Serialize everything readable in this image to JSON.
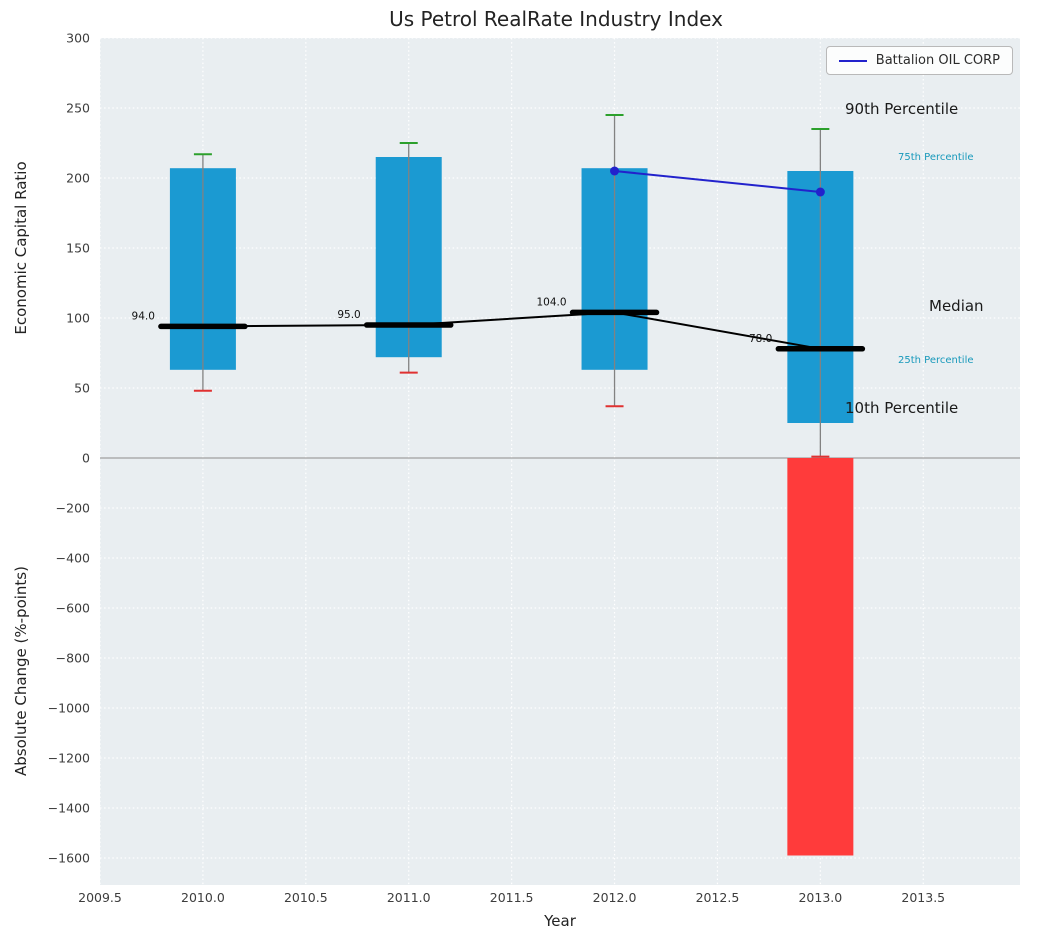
{
  "title": "Us Petrol RealRate Industry Index",
  "legend": {
    "series_label": "Battalion OIL CORP"
  },
  "axes": {
    "xlabel": "Year",
    "top_ylabel": "Economic Capital Ratio",
    "bottom_ylabel": "Absolute Change (%-points)"
  },
  "annotations": {
    "p90_label": "90th Percentile",
    "p75_label": "75th Percentile",
    "median_label": "Median",
    "p25_label": "25th Percentile",
    "p10_label": "10th Percentile"
  },
  "colors": {
    "box": "#1b9ad2",
    "bar_negative": "#ff3b3b",
    "series_line": "#2222cc",
    "whisker": "#828282",
    "cap_top": "#2ca02c",
    "cap_bottom": "#e03131",
    "median": "#000000",
    "panel_bg": "#e9eef1",
    "grid": "#ffffff",
    "zero_line": "#a0a0a0",
    "tick_text": "#3d3d3d",
    "annotation_teal": "#1899bb"
  },
  "chart_data": {
    "type": "boxplot",
    "title": "Us Petrol RealRate Industry Index",
    "xlabel": "Year",
    "xlim": [
      2009.5,
      2013.97
    ],
    "x_tick_values": [
      2009.5,
      2010.0,
      2010.5,
      2011.0,
      2011.5,
      2012.0,
      2012.5,
      2013.0,
      2013.5
    ],
    "x_tick_labels": [
      "2009.5",
      "2010.0",
      "2010.5",
      "2011.0",
      "2011.5",
      "2012.0",
      "2012.5",
      "2013.0",
      "2013.5"
    ],
    "top_panel": {
      "ylabel": "Economic Capital Ratio",
      "ylim": [
        0,
        300
      ],
      "y_tick_values": [
        0,
        50,
        100,
        150,
        200,
        250,
        300
      ],
      "y_tick_labels": [
        "0",
        "50",
        "100",
        "150",
        "200",
        "250",
        "300"
      ],
      "grid": true,
      "boxes": [
        {
          "year": 2010,
          "p10": 48,
          "p25": 63,
          "median": 94,
          "p75": 207,
          "p90": 217,
          "median_label": "94.0"
        },
        {
          "year": 2011,
          "p10": 61,
          "p25": 72,
          "median": 95,
          "p75": 215,
          "p90": 225,
          "median_label": "95.0"
        },
        {
          "year": 2012,
          "p10": 37,
          "p25": 63,
          "median": 104,
          "p75": 207,
          "p90": 245,
          "median_label": "104.0"
        },
        {
          "year": 2013,
          "p10": 1,
          "p25": 25,
          "median": 78,
          "p75": 205,
          "p90": 235,
          "median_label": "78.0"
        }
      ],
      "series": [
        {
          "name": "Battalion OIL CORP",
          "x": [
            2012,
            2013
          ],
          "y": [
            205,
            190
          ]
        }
      ],
      "legend_position": "upper right"
    },
    "bottom_panel": {
      "ylabel": "Absolute Change (%-points)",
      "ylim": [
        -1708,
        0
      ],
      "y_tick_values": [
        -200,
        -400,
        -600,
        -800,
        -1000,
        -1200,
        -1400,
        -1600
      ],
      "y_tick_labels": [
        "−200",
        "−400",
        "−600",
        "−800",
        "−1000",
        "−1200",
        "−1400",
        "−1600"
      ],
      "grid": true,
      "bars": [
        {
          "x": 2013,
          "value": -1590
        }
      ]
    }
  }
}
